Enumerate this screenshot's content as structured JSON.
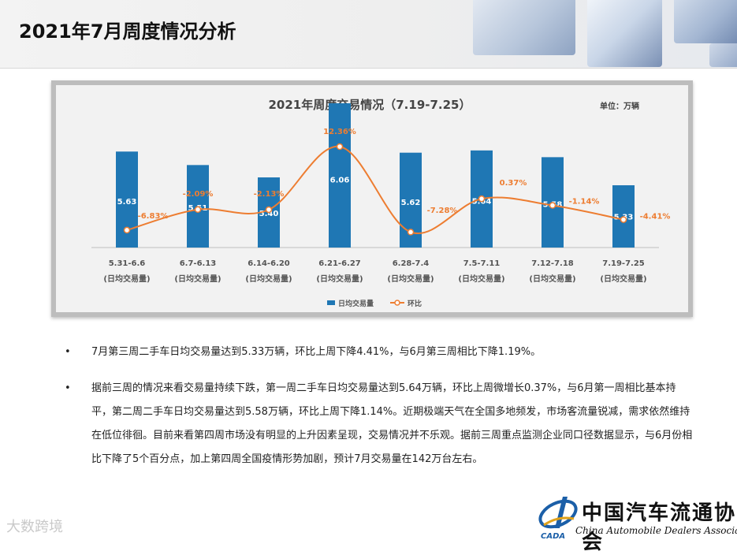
{
  "header": {
    "title": "2021年7月周度情况分析"
  },
  "chart_data": {
    "type": "bar",
    "title": "2021年周度交易情况（7.19-7.25）",
    "unit_label": "单位：万辆",
    "categories": [
      "5.31-6.6",
      "6.7-6.13",
      "6.14-6.20",
      "6.21-6.27",
      "6.28-7.4",
      "7.5-7.11",
      "7.12-7.18",
      "7.19-7.25"
    ],
    "category_sub": "(日均交易量)",
    "series": [
      {
        "name": "日均交易量",
        "type": "bar",
        "color": "#1f77b4",
        "values": [
          5.63,
          5.51,
          5.4,
          6.06,
          5.62,
          5.64,
          5.58,
          5.33
        ],
        "labels": [
          "5.63",
          "5.51",
          "5.40",
          "6.06",
          "5.62",
          "5.64",
          "5.58",
          "5.33"
        ]
      },
      {
        "name": "环比",
        "type": "line",
        "color": "#ed7d31",
        "values": [
          -6.83,
          -2.09,
          -2.13,
          12.36,
          -7.28,
          0.37,
          -1.14,
          -4.41
        ],
        "labels": [
          "-6.83%",
          "-2.09%",
          "-2.13%",
          "12.36%",
          "-7.28%",
          "0.37%",
          "-1.14%",
          "-4.41%"
        ]
      }
    ],
    "legend_position": "bottom",
    "grid": false
  },
  "bullets": [
    "7月第三周二手车日均交易量达到5.33万辆，环比上周下降4.41%，与6月第三周相比下降1.19%。",
    "据前三周的情况来看交易量持续下跌，第一周二手车日均交易量达到5.64万辆，环比上周微增长0.37%，与6月第一周相比基本持平，第二周二手车日均交易量达到5.58万辆，环比上周下降1.14%。近期极端天气在全国多地频发，市场客流量锐减，需求依然维持在低位徘徊。目前来看第四周市场没有明显的上升因素呈现，交易情况并不乐观。据前三周重点监测企业同口径数据显示，与6月份相比下降了5个百分点，加上第四周全国疫情形势加剧，预计7月交易量在142万台左右。"
  ],
  "bullet_symbol": "•",
  "logo": {
    "cn": "中国汽车流通协会",
    "en": "China Automobile Dealers Association",
    "mark": "CADA"
  },
  "watermark": "大数跨境"
}
